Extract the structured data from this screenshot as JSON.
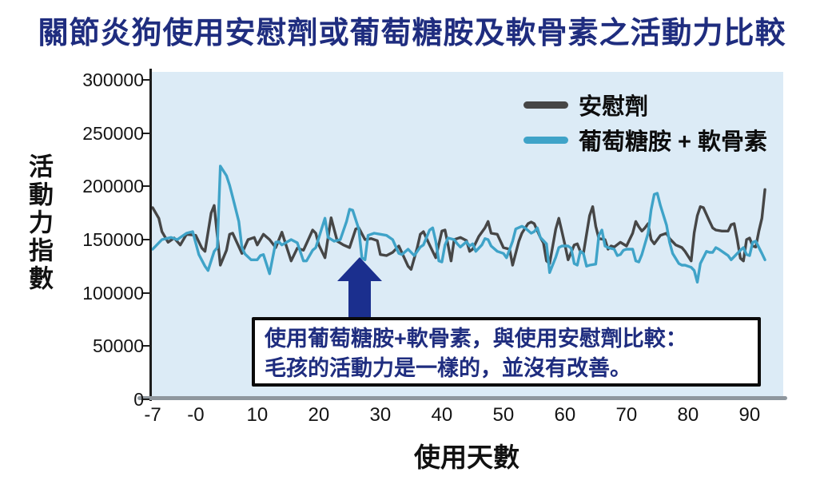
{
  "title": "關節炎狗使用安慰劑或葡萄糖胺及軟骨素之活動力比較",
  "colors": {
    "title_navy": "#1f2d7f",
    "plot_background": "#dcebf6",
    "placebo_line": "#464646",
    "glucosamine_line": "#3fa3c8",
    "axis_gray": "#8f979e",
    "arrow_navy": "#1b2f8e"
  },
  "chart_data": {
    "type": "line",
    "title": "關節炎狗使用安慰劑或葡萄糖胺及軟骨素之活動力比較",
    "xlabel": "使用天數",
    "ylabel": "活動力指數",
    "xlim": [
      -7,
      95.5
    ],
    "ylim": [
      0,
      300000
    ],
    "grid": false,
    "legend_position": "top-right-inside",
    "x_ticks": [
      {
        "label": "-7",
        "day": -7
      },
      {
        "label": "-0",
        "day": 0
      },
      {
        "label": "10",
        "day": 10
      },
      {
        "label": "20",
        "day": 20
      },
      {
        "label": "30",
        "day": 30
      },
      {
        "label": "40",
        "day": 40
      },
      {
        "label": "50",
        "day": 50
      },
      {
        "label": "60",
        "day": 60
      },
      {
        "label": "70",
        "day": 70
      },
      {
        "label": "80",
        "day": 80
      },
      {
        "label": "90",
        "day": 90
      }
    ],
    "y_ticks": [
      0,
      50000,
      100000,
      150000,
      200000,
      250000,
      300000
    ],
    "series": [
      {
        "name": "安慰劑",
        "color": "#464646",
        "points": [
          [
            -7,
            180000
          ],
          [
            -6,
            170000
          ],
          [
            -5.5,
            157500
          ],
          [
            -4.5,
            147500
          ],
          [
            -3.5,
            151500
          ],
          [
            -2.5,
            145000
          ],
          [
            -1.5,
            155000
          ],
          [
            0,
            154000
          ],
          [
            1,
            142000
          ],
          [
            1.5,
            139000
          ],
          [
            2.5,
            175000
          ],
          [
            3,
            182000
          ],
          [
            4,
            126000
          ],
          [
            5,
            140000
          ],
          [
            5.5,
            155000
          ],
          [
            6,
            156000
          ],
          [
            7.5,
            137000
          ],
          [
            8.5,
            150000
          ],
          [
            9.5,
            152000
          ],
          [
            10,
            145000
          ],
          [
            11,
            155000
          ],
          [
            12,
            150000
          ],
          [
            13,
            142500
          ],
          [
            14,
            157000
          ],
          [
            15.5,
            130000
          ],
          [
            16.5,
            142000
          ],
          [
            17.5,
            140000
          ],
          [
            19,
            159000
          ],
          [
            19.5,
            156000
          ],
          [
            20,
            145000
          ],
          [
            21,
            133000
          ],
          [
            22,
            170500
          ],
          [
            23,
            148500
          ],
          [
            24,
            145000
          ],
          [
            25,
            142500
          ],
          [
            26,
            160000
          ],
          [
            26.5,
            161000
          ],
          [
            27.5,
            150000
          ],
          [
            28.5,
            151000
          ],
          [
            29.5,
            149000
          ],
          [
            30,
            136000
          ],
          [
            31,
            135000
          ],
          [
            32,
            138000
          ],
          [
            33,
            144000
          ],
          [
            34.5,
            125000
          ],
          [
            35,
            122000
          ],
          [
            36,
            142500
          ],
          [
            36.5,
            155000
          ],
          [
            37,
            157500
          ],
          [
            38,
            145000
          ],
          [
            39,
            133000
          ],
          [
            40,
            158000
          ],
          [
            40.5,
            159000
          ],
          [
            41,
            145000
          ],
          [
            41.5,
            130000
          ],
          [
            42,
            150000
          ],
          [
            43,
            152000
          ],
          [
            44,
            149000
          ],
          [
            44.5,
            139000
          ],
          [
            45,
            141000
          ],
          [
            46,
            153000
          ],
          [
            47,
            161000
          ],
          [
            47.5,
            167000
          ],
          [
            48,
            156000
          ],
          [
            49,
            155000
          ],
          [
            50,
            142500
          ],
          [
            51,
            141000
          ],
          [
            51.5,
            126000
          ],
          [
            52.5,
            148500
          ],
          [
            53,
            156000
          ],
          [
            54,
            165000
          ],
          [
            54.5,
            166500
          ],
          [
            55,
            165000
          ],
          [
            56,
            152000
          ],
          [
            56.5,
            147000
          ],
          [
            57,
            130000
          ],
          [
            57.5,
            127500
          ],
          [
            58.5,
            160000
          ],
          [
            59,
            170000
          ],
          [
            59.5,
            157500
          ],
          [
            60,
            145000
          ],
          [
            60.5,
            131000
          ],
          [
            61.5,
            145000
          ],
          [
            62,
            146000
          ],
          [
            62.5,
            139000
          ],
          [
            63,
            137000
          ],
          [
            64,
            172500
          ],
          [
            64.5,
            181000
          ],
          [
            65,
            162500
          ],
          [
            65.5,
            151000
          ],
          [
            66.5,
            150000
          ],
          [
            67,
            141000
          ],
          [
            67.5,
            144000
          ],
          [
            68,
            143000
          ],
          [
            69,
            147500
          ],
          [
            70,
            144000
          ],
          [
            71,
            156000
          ],
          [
            71.5,
            167000
          ],
          [
            72,
            162000
          ],
          [
            72.5,
            158000
          ],
          [
            73,
            161000
          ],
          [
            73.5,
            165000
          ],
          [
            74,
            150000
          ],
          [
            74.5,
            146000
          ],
          [
            75.5,
            154000
          ],
          [
            76.5,
            156000
          ],
          [
            77,
            151000
          ],
          [
            78,
            145000
          ],
          [
            79,
            142500
          ],
          [
            79.5,
            139000
          ],
          [
            80.5,
            130000
          ],
          [
            81,
            156500
          ],
          [
            81.5,
            172500
          ],
          [
            82,
            181000
          ],
          [
            82.5,
            180000
          ],
          [
            83.5,
            167000
          ],
          [
            84,
            161000
          ],
          [
            84.5,
            159000
          ],
          [
            85.5,
            158000
          ],
          [
            86.5,
            158000
          ],
          [
            87,
            164000
          ],
          [
            87.5,
            165000
          ],
          [
            88,
            150000
          ],
          [
            88.5,
            132500
          ],
          [
            89,
            130000
          ],
          [
            89.5,
            150000
          ],
          [
            90,
            151500
          ],
          [
            90.5,
            144000
          ],
          [
            91,
            143000
          ],
          [
            91.5,
            158000
          ],
          [
            92,
            170000
          ],
          [
            92.5,
            197000
          ]
        ]
      },
      {
        "name": "葡萄糖胺 + 軟骨素",
        "color": "#3fa3c8",
        "points": [
          [
            -7,
            141000
          ],
          [
            -5.5,
            150000
          ],
          [
            -4,
            152000
          ],
          [
            -3,
            150000
          ],
          [
            -1.5,
            156000
          ],
          [
            -0.5,
            157500
          ],
          [
            0.5,
            136000
          ],
          [
            1.5,
            125000
          ],
          [
            2,
            121000
          ],
          [
            3,
            139000
          ],
          [
            3.5,
            142500
          ],
          [
            4,
            219000
          ],
          [
            5,
            210000
          ],
          [
            5.5,
            201000
          ],
          [
            6,
            190000
          ],
          [
            7,
            167000
          ],
          [
            7.5,
            142500
          ],
          [
            8,
            136500
          ],
          [
            9,
            131000
          ],
          [
            10,
            131000
          ],
          [
            10.5,
            135000
          ],
          [
            11,
            136000
          ],
          [
            12,
            118000
          ],
          [
            13,
            147500
          ],
          [
            13.5,
            148000
          ],
          [
            14,
            145000
          ],
          [
            15.5,
            150000
          ],
          [
            16.5,
            147000
          ],
          [
            17.5,
            130000
          ],
          [
            18,
            130000
          ],
          [
            19,
            140000
          ],
          [
            19.5,
            142500
          ],
          [
            20.5,
            161000
          ],
          [
            21,
            170000
          ],
          [
            21.5,
            152000
          ],
          [
            22.5,
            148500
          ],
          [
            23.5,
            150000
          ],
          [
            24.5,
            167000
          ],
          [
            25,
            178500
          ],
          [
            25.5,
            177500
          ],
          [
            26.5,
            160000
          ],
          [
            27,
            133000
          ],
          [
            27.5,
            131000
          ],
          [
            28,
            154000
          ],
          [
            29,
            156000
          ],
          [
            30,
            155000
          ],
          [
            31,
            154000
          ],
          [
            32,
            150000
          ],
          [
            33,
            137000
          ],
          [
            33.5,
            136000
          ],
          [
            34.5,
            141000
          ],
          [
            35.5,
            135000
          ],
          [
            36.5,
            143000
          ],
          [
            37,
            145000
          ],
          [
            38,
            159000
          ],
          [
            38.5,
            161000
          ],
          [
            39,
            148500
          ],
          [
            39.5,
            130000
          ],
          [
            40,
            129000
          ],
          [
            40.5,
            145000
          ],
          [
            41,
            151500
          ],
          [
            42,
            150000
          ],
          [
            42.5,
            146000
          ],
          [
            43,
            143000
          ],
          [
            44,
            148000
          ],
          [
            44.5,
            144000
          ],
          [
            45,
            146000
          ],
          [
            45.5,
            139000
          ],
          [
            46.5,
            145000
          ],
          [
            47,
            151000
          ],
          [
            47.5,
            150000
          ],
          [
            48,
            144000
          ],
          [
            49,
            139000
          ],
          [
            50,
            137000
          ],
          [
            50.5,
            133000
          ],
          [
            51.5,
            148500
          ],
          [
            52,
            160000
          ],
          [
            53,
            162500
          ],
          [
            53.5,
            161000
          ],
          [
            54.5,
            156000
          ],
          [
            55,
            157500
          ],
          [
            55.5,
            161000
          ],
          [
            56,
            152000
          ],
          [
            57,
            146000
          ],
          [
            57.5,
            119000
          ],
          [
            58.5,
            133500
          ],
          [
            59,
            142500
          ],
          [
            59.5,
            144000
          ],
          [
            60.5,
            144000
          ],
          [
            61,
            142000
          ],
          [
            61.5,
            127500
          ],
          [
            62,
            126000
          ],
          [
            62.5,
            139000
          ],
          [
            63,
            137000
          ],
          [
            63.5,
            125000
          ],
          [
            64,
            126000
          ],
          [
            65,
            127000
          ],
          [
            65.5,
            154000
          ],
          [
            66,
            159000
          ],
          [
            66.5,
            144000
          ],
          [
            67,
            142500
          ],
          [
            68,
            141000
          ],
          [
            68.5,
            135000
          ],
          [
            69,
            136000
          ],
          [
            69.5,
            140000
          ],
          [
            70,
            141000
          ],
          [
            71,
            141000
          ],
          [
            71.5,
            130000
          ],
          [
            72,
            129000
          ],
          [
            72.5,
            136000
          ],
          [
            73,
            146000
          ],
          [
            73.5,
            156000
          ],
          [
            74,
            178000
          ],
          [
            74.5,
            192500
          ],
          [
            75,
            193500
          ],
          [
            75.5,
            182000
          ],
          [
            76.5,
            163500
          ],
          [
            77,
            147500
          ],
          [
            77.5,
            137000
          ],
          [
            78.5,
            127500
          ],
          [
            79,
            126000
          ],
          [
            79.5,
            126000
          ],
          [
            80.5,
            124000
          ],
          [
            81,
            121000
          ],
          [
            81.5,
            110000
          ],
          [
            82,
            127500
          ],
          [
            83,
            139000
          ],
          [
            83.5,
            138000
          ],
          [
            84,
            138000
          ],
          [
            84.5,
            142500
          ],
          [
            85,
            141000
          ],
          [
            86,
            137000
          ],
          [
            86.5,
            135000
          ],
          [
            87,
            131000
          ],
          [
            88,
            137000
          ],
          [
            88.5,
            140000
          ],
          [
            89,
            142500
          ],
          [
            89.5,
            136000
          ],
          [
            90,
            135000
          ],
          [
            90.5,
            147500
          ],
          [
            91,
            148500
          ],
          [
            92,
            137000
          ],
          [
            92.5,
            131000
          ]
        ]
      }
    ],
    "annotation": {
      "lines": [
        "使用葡萄糖胺+軟骨素，與使用安慰劑比較：",
        "毛孩的活動力是一樣的，並沒有改善。"
      ],
      "arrow_points_at_day": 27.5
    }
  }
}
